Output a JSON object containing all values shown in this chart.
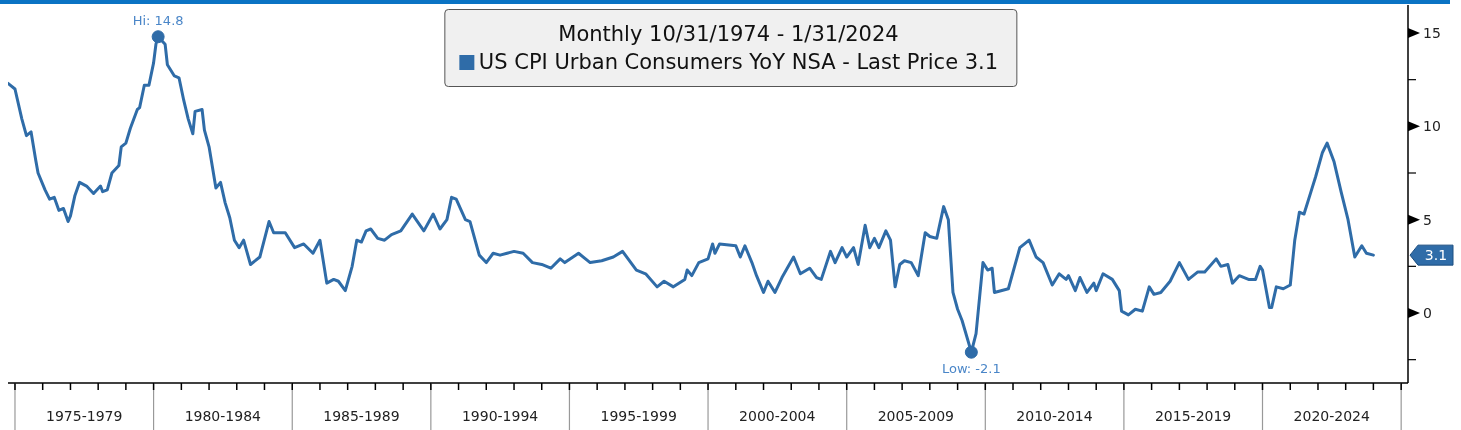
{
  "chart_data": {
    "type": "line",
    "legend_title": "Monthly 10/31/1974 - 1/31/2024",
    "legend": "top",
    "xlim": [
      "1974-10",
      "2025-04"
    ],
    "xticks": [
      {
        "value": "1975",
        "label": null
      },
      {
        "value": "1976",
        "label": null
      },
      {
        "value": "1977",
        "label": null
      },
      {
        "value": "1978",
        "label": null
      },
      {
        "value": "1979",
        "label": null
      },
      {
        "value": "1980",
        "label": null
      },
      {
        "value": "1981",
        "label": null
      },
      {
        "value": "1982",
        "label": null
      },
      {
        "value": "1983",
        "label": null
      },
      {
        "value": "1984",
        "label": null
      },
      {
        "value": "1985",
        "label": null
      },
      {
        "value": "1986",
        "label": null
      },
      {
        "value": "1987",
        "label": null
      },
      {
        "value": "1988",
        "label": null
      },
      {
        "value": "1989",
        "label": null
      },
      {
        "value": "1990",
        "label": null
      },
      {
        "value": "1991",
        "label": null
      },
      {
        "value": "1992",
        "label": null
      },
      {
        "value": "1993",
        "label": null
      },
      {
        "value": "1994",
        "label": null
      },
      {
        "value": "1995",
        "label": null
      },
      {
        "value": "1996",
        "label": null
      },
      {
        "value": "1997",
        "label": null
      },
      {
        "value": "1998",
        "label": null
      },
      {
        "value": "1999",
        "label": null
      },
      {
        "value": "2000",
        "label": null
      },
      {
        "value": "2001",
        "label": null
      },
      {
        "value": "2002",
        "label": null
      },
      {
        "value": "2003",
        "label": null
      },
      {
        "value": "2004",
        "label": null
      },
      {
        "value": "2005",
        "label": null
      },
      {
        "value": "2006",
        "label": null
      },
      {
        "value": "2007",
        "label": null
      },
      {
        "value": "2008",
        "label": null
      },
      {
        "value": "2009",
        "label": null
      },
      {
        "value": "2010",
        "label": null
      },
      {
        "value": "2011",
        "label": null
      },
      {
        "value": "2012",
        "label": null
      },
      {
        "value": "2013",
        "label": null
      },
      {
        "value": "2014",
        "label": null
      },
      {
        "value": "2015",
        "label": null
      },
      {
        "value": "2016",
        "label": null
      },
      {
        "value": "2017",
        "label": null
      },
      {
        "value": "2018",
        "label": null
      },
      {
        "value": "2019",
        "label": null
      },
      {
        "value": "2020",
        "label": null
      },
      {
        "value": "2021",
        "label": null
      },
      {
        "value": "2022",
        "label": null
      },
      {
        "value": "2023",
        "label": null
      },
      {
        "value": "2024",
        "label": null
      },
      {
        "value": "2025",
        "label": null
      },
      {
        "value": "1977-07",
        "label": "1975-1979"
      },
      {
        "value": "1982-07",
        "label": "1980-1984"
      },
      {
        "value": "1987-07",
        "label": "1985-1989"
      },
      {
        "value": "1992-07",
        "label": "1990-1994"
      },
      {
        "value": "1997-07",
        "label": "1995-1999"
      },
      {
        "value": "2002-07",
        "label": "2000-2004"
      },
      {
        "value": "2007-07",
        "label": "2005-2009"
      },
      {
        "value": "2012-07",
        "label": "2010-2014"
      },
      {
        "value": "2017-07",
        "label": "2015-2019"
      },
      {
        "value": "2022-07",
        "label": "2020-2024"
      }
    ],
    "ylim": [
      -3.75,
      16.5
    ],
    "yticks": [
      15,
      {
        "value": 12.5,
        "label": null
      },
      10,
      {
        "value": 7.5,
        "label": null
      },
      5,
      {
        "value": 2.5,
        "label": null
      },
      0,
      {
        "value": -2.5,
        "label": null
      }
    ],
    "annotations": [
      {
        "text": "Hi: 14.8",
        "x": "1980-03",
        "y": 14.8
      },
      {
        "text": "Low: -2.1",
        "x": "2009-07",
        "y": -2.1
      },
      "3.1"
    ],
    "series": [
      {
        "name": "US CPI Urban Consumers YoY NSA - Last Price 3.1",
        "color": "#2f6ca8",
        "x": [
          "1974-10",
          "1975-01",
          "1975-04",
          "1975-06",
          "1975-08",
          "1975-10",
          "1975-11",
          "1976-02",
          "1976-04",
          "1976-06",
          "1976-08",
          "1976-10",
          "1976-12",
          "1977-01",
          "1977-03",
          "1977-05",
          "1977-08",
          "1977-11",
          "1978-02",
          "1978-03",
          "1978-05",
          "1978-07",
          "1978-10",
          "1978-11",
          "1979-01",
          "1979-03",
          "1979-06",
          "1979-07",
          "1979-09",
          "1979-11",
          "1980-01",
          "1980-02",
          "1980-03",
          "1980-06",
          "1980-07",
          "1980-10",
          "1980-12",
          "1981-02",
          "1981-04",
          "1981-06",
          "1981-07",
          "1981-10",
          "1981-11",
          "1982-01",
          "1982-04",
          "1982-06",
          "1982-08",
          "1982-10",
          "1982-12",
          "1983-02",
          "1983-04",
          "1983-07",
          "1983-11",
          "1984-03",
          "1984-05",
          "1984-10",
          "1985-02",
          "1985-06",
          "1985-10",
          "1986-01",
          "1986-04",
          "1986-07",
          "1986-09",
          "1986-12",
          "1987-03",
          "1987-05",
          "1987-07",
          "1987-09",
          "1987-11",
          "1988-02",
          "1988-05",
          "1988-08",
          "1988-12",
          "1989-05",
          "1989-10",
          "1990-02",
          "1990-05",
          "1990-08",
          "1990-10",
          "1990-12",
          "1991-04",
          "1991-06",
          "1991-10",
          "1992-01",
          "1992-04",
          "1992-07",
          "1992-10",
          "1993-01",
          "1993-05",
          "1993-09",
          "1994-01",
          "1994-05",
          "1994-09",
          "1994-11",
          "1995-05",
          "1995-10",
          "1996-03",
          "1996-08",
          "1996-12",
          "1997-06",
          "1997-10",
          "1998-03",
          "1998-06",
          "1998-10",
          "1999-03",
          "1999-04",
          "1999-06",
          "1999-09",
          "2000-01",
          "2000-03",
          "2000-04",
          "2000-06",
          "2001-01",
          "2001-03",
          "2001-05",
          "2001-08",
          "2001-10",
          "2002-01",
          "2002-03",
          "2002-06",
          "2002-09",
          "2003-02",
          "2003-05",
          "2003-09",
          "2003-12",
          "2004-02",
          "2004-06",
          "2004-08",
          "2004-11",
          "2005-01",
          "2005-04",
          "2005-06",
          "2005-09",
          "2005-11",
          "2006-01",
          "2006-03",
          "2006-06",
          "2006-08",
          "2006-10",
          "2006-12",
          "2007-02",
          "2007-05",
          "2007-08",
          "2007-11",
          "2008-01",
          "2008-04",
          "2008-07",
          "2008-09",
          "2008-11",
          "2009-01",
          "2009-03",
          "2009-07",
          "2009-09",
          "2009-12",
          "2010-02",
          "2010-04",
          "2010-05",
          "2010-11",
          "2011-04",
          "2011-08",
          "2011-11",
          "2012-02",
          "2012-06",
          "2012-09",
          "2012-12",
          "2013-01",
          "2013-04",
          "2013-06",
          "2013-09",
          "2013-12",
          "2014-01",
          "2014-04",
          "2014-08",
          "2014-11",
          "2014-12",
          "2015-03",
          "2015-06",
          "2015-09",
          "2015-12",
          "2016-02",
          "2016-05",
          "2016-09",
          "2017-01",
          "2017-05",
          "2017-09",
          "2017-12",
          "2018-05",
          "2018-07",
          "2018-10",
          "2018-12",
          "2019-03",
          "2019-07",
          "2019-10",
          "2019-12",
          "2020-01",
          "2020-04",
          "2020-05",
          "2020-07",
          "2020-10",
          "2021-01",
          "2021-03",
          "2021-05",
          "2021-07",
          "2021-10",
          "2021-12",
          "2022-03",
          "2022-05",
          "2022-08",
          "2022-11",
          "2023-02",
          "2023-05",
          "2023-08",
          "2023-10",
          "2024-01"
        ],
        "values": [
          12.3,
          12.0,
          10.4,
          9.5,
          9.7,
          8.2,
          7.5,
          6.6,
          6.1,
          6.2,
          5.5,
          5.6,
          4.9,
          5.2,
          6.3,
          7.0,
          6.8,
          6.4,
          6.8,
          6.5,
          6.6,
          7.5,
          7.9,
          8.9,
          9.1,
          9.9,
          10.9,
          11.0,
          12.2,
          12.2,
          13.4,
          14.4,
          14.8,
          14.4,
          13.3,
          12.7,
          12.6,
          11.4,
          10.4,
          9.6,
          10.8,
          10.9,
          9.8,
          8.9,
          6.7,
          7.0,
          5.9,
          5.1,
          3.9,
          3.5,
          3.9,
          2.6,
          3.0,
          4.9,
          4.3,
          4.3,
          3.5,
          3.7,
          3.2,
          3.9,
          1.6,
          1.8,
          1.7,
          1.2,
          2.5,
          3.9,
          3.8,
          4.4,
          4.5,
          4.0,
          3.9,
          4.2,
          4.4,
          5.3,
          4.4,
          5.3,
          4.5,
          5.0,
          6.2,
          6.1,
          5.0,
          4.9,
          3.1,
          2.7,
          3.2,
          3.1,
          3.2,
          3.3,
          3.2,
          2.7,
          2.6,
          2.4,
          2.9,
          2.7,
          3.2,
          2.7,
          2.8,
          3.0,
          3.3,
          2.3,
          2.1,
          1.4,
          1.7,
          1.4,
          1.8,
          2.3,
          2.0,
          2.7,
          2.9,
          3.7,
          3.2,
          3.7,
          3.6,
          3.0,
          3.6,
          2.7,
          2.0,
          1.1,
          1.7,
          1.1,
          1.9,
          3.0,
          2.1,
          2.4,
          1.9,
          1.8,
          3.3,
          2.7,
          3.5,
          3.0,
          3.5,
          2.6,
          4.7,
          3.5,
          4.0,
          3.5,
          4.4,
          3.9,
          1.4,
          2.6,
          2.8,
          2.7,
          2.0,
          4.3,
          4.1,
          4.0,
          5.7,
          5.0,
          1.1,
          0.2,
          -0.4,
          -2.1,
          -1.1,
          2.7,
          2.3,
          2.4,
          1.1,
          1.3,
          3.5,
          3.9,
          3.0,
          2.7,
          1.5,
          2.1,
          1.8,
          2.0,
          1.2,
          1.9,
          1.1,
          1.6,
          1.2,
          2.1,
          1.8,
          1.2,
          0.1,
          -0.1,
          0.2,
          0.1,
          1.4,
          1.0,
          1.1,
          1.7,
          2.7,
          1.8,
          2.2,
          2.2,
          2.9,
          2.5,
          2.6,
          1.6,
          2.0,
          1.8,
          1.8,
          2.5,
          2.3,
          0.3,
          0.3,
          1.4,
          1.3,
          1.5,
          3.9,
          5.4,
          5.3,
          6.5,
          7.3,
          8.6,
          9.1,
          8.1,
          6.5,
          5.0,
          3.0,
          3.6,
          3.2,
          3.1
        ]
      }
    ]
  }
}
